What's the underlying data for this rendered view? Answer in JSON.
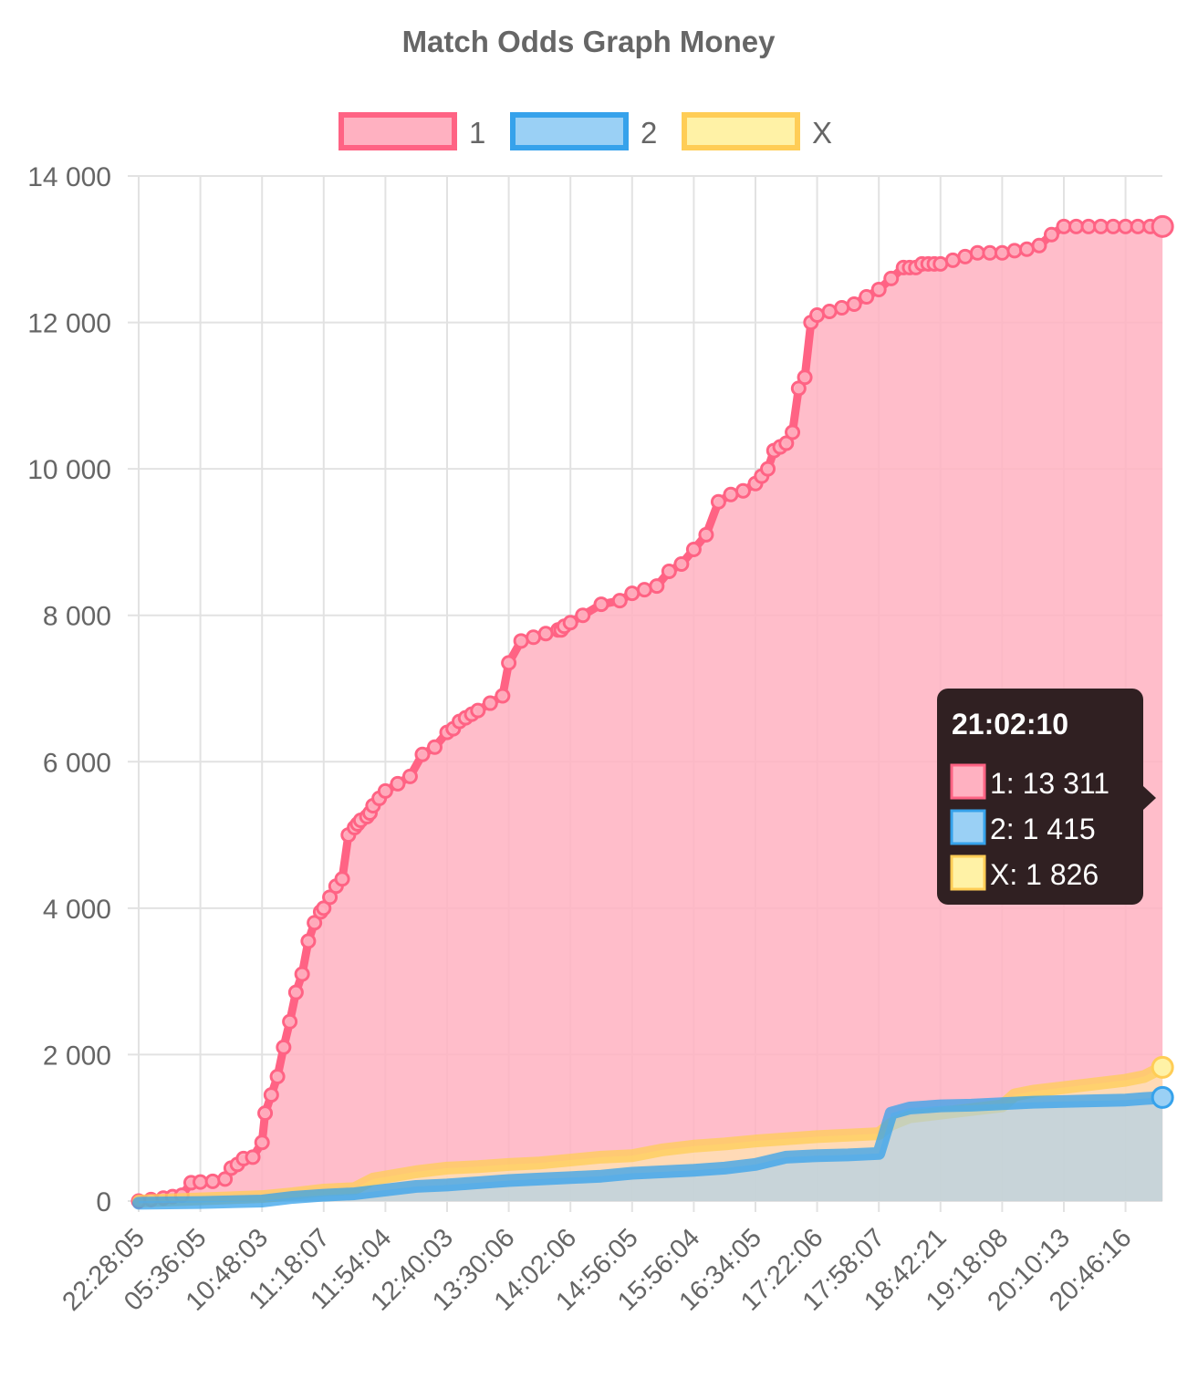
{
  "chart_data": {
    "type": "area",
    "title": "Match Odds Graph Money",
    "xlabel": "",
    "ylabel": "",
    "ylim": [
      0,
      14000
    ],
    "y_ticks": [
      "0",
      "2 000",
      "4 000",
      "6 000",
      "8 000",
      "10 000",
      "12 000",
      "14 000"
    ],
    "y_tick_values": [
      0,
      2000,
      4000,
      6000,
      8000,
      10000,
      12000,
      14000
    ],
    "x_tick_labels": [
      "22:28:05",
      "05:36:05",
      "10:48:03",
      "11:18:07",
      "11:54:04",
      "12:40:03",
      "13:30:06",
      "14:02:06",
      "14:56:05",
      "15:56:04",
      "16:34:05",
      "17:22:06",
      "17:58:07",
      "18:42:21",
      "19:18:08",
      "20:10:13",
      "20:46:16"
    ],
    "x_index_range": [
      0,
      16.6
    ],
    "grid": true,
    "legend_position": "top",
    "series": [
      {
        "name": "1",
        "color": "#ff6384",
        "fill": "#ffb1c1",
        "x": [
          0,
          0.2,
          0.4,
          0.55,
          0.7,
          0.85,
          1.0,
          1.2,
          1.4,
          1.5,
          1.6,
          1.7,
          1.85,
          2.0,
          2.05,
          2.15,
          2.25,
          2.35,
          2.45,
          2.55,
          2.65,
          2.75,
          2.85,
          2.95,
          3.0,
          3.1,
          3.2,
          3.3,
          3.4,
          3.5,
          3.55,
          3.6,
          3.7,
          3.75,
          3.8,
          3.9,
          4.0,
          4.2,
          4.4,
          4.6,
          4.8,
          5.0,
          5.1,
          5.2,
          5.3,
          5.4,
          5.5,
          5.7,
          5.9,
          6.0,
          6.2,
          6.4,
          6.6,
          6.8,
          6.85,
          6.9,
          7.0,
          7.2,
          7.5,
          7.8,
          8.0,
          8.2,
          8.4,
          8.6,
          8.8,
          9.0,
          9.2,
          9.4,
          9.6,
          9.8,
          10.0,
          10.1,
          10.2,
          10.3,
          10.4,
          10.5,
          10.6,
          10.7,
          10.8,
          10.9,
          11.0,
          11.2,
          11.4,
          11.6,
          11.8,
          12.0,
          12.2,
          12.4,
          12.5,
          12.6,
          12.7,
          12.8,
          12.9,
          13.0,
          13.2,
          13.4,
          13.6,
          13.8,
          14.0,
          14.2,
          14.4,
          14.6,
          14.8,
          15.0,
          15.2,
          15.4,
          15.6,
          15.8,
          16.0,
          16.2,
          16.4,
          16.6
        ],
        "values": [
          0,
          20,
          40,
          60,
          80,
          250,
          260,
          270,
          300,
          450,
          500,
          580,
          600,
          800,
          1200,
          1450,
          1700,
          2100,
          2450,
          2850,
          3100,
          3550,
          3800,
          3950,
          4000,
          4150,
          4300,
          4400,
          5000,
          5100,
          5150,
          5200,
          5250,
          5300,
          5400,
          5500,
          5600,
          5700,
          5800,
          6100,
          6200,
          6400,
          6450,
          6550,
          6600,
          6650,
          6700,
          6800,
          6900,
          7350,
          7650,
          7700,
          7750,
          7800,
          7800,
          7850,
          7900,
          8000,
          8150,
          8200,
          8300,
          8350,
          8400,
          8600,
          8700,
          8900,
          9100,
          9550,
          9650,
          9700,
          9800,
          9900,
          10000,
          10250,
          10300,
          10350,
          10500,
          11100,
          11250,
          12000,
          12100,
          12150,
          12200,
          12250,
          12350,
          12450,
          12600,
          12750,
          12750,
          12750,
          12800,
          12800,
          12800,
          12800,
          12850,
          12900,
          12950,
          12950,
          12950,
          12980,
          13000,
          13050,
          13200,
          13311,
          13311,
          13311,
          13311,
          13311,
          13311,
          13311,
          13311,
          13311
        ]
      },
      {
        "name": "2",
        "color": "#36a2eb",
        "fill": "#9ad0f5",
        "x": [
          0,
          1,
          2,
          2.5,
          3,
          3.5,
          4,
          4.5,
          5,
          5.5,
          6,
          6.5,
          7,
          7.5,
          8,
          8.5,
          9,
          9.5,
          10,
          10.5,
          11,
          11.5,
          12,
          12.2,
          12.5,
          13,
          13.5,
          14,
          14.5,
          15,
          15.5,
          16,
          16.3,
          16.6
        ],
        "values": [
          -30,
          -20,
          0,
          50,
          80,
          100,
          150,
          200,
          220,
          250,
          280,
          300,
          320,
          340,
          380,
          400,
          420,
          450,
          500,
          600,
          620,
          630,
          650,
          1200,
          1270,
          1300,
          1310,
          1330,
          1350,
          1360,
          1370,
          1380,
          1400,
          1415
        ]
      },
      {
        "name": "X",
        "color": "#ffcd56",
        "fill": "#fff2a6",
        "x": [
          0,
          1,
          2,
          2.5,
          3,
          3.5,
          3.8,
          4.5,
          5,
          5.5,
          6,
          6.5,
          7,
          7.5,
          8,
          8.5,
          9,
          9.5,
          10,
          10.5,
          11,
          11.5,
          12,
          12.2,
          12.5,
          13,
          13.5,
          14,
          14.2,
          14.5,
          15,
          15.5,
          16,
          16.3,
          16.6
        ],
        "values": [
          0,
          30,
          60,
          100,
          150,
          170,
          300,
          400,
          450,
          470,
          500,
          520,
          560,
          600,
          620,
          700,
          750,
          780,
          820,
          850,
          880,
          900,
          920,
          1050,
          1150,
          1200,
          1250,
          1300,
          1450,
          1500,
          1550,
          1600,
          1650,
          1700,
          1826
        ]
      }
    ],
    "tooltip": {
      "title": "21:02:10",
      "items": [
        {
          "text": "1: 13 311",
          "fill": "#ffb1c1",
          "border": "#ff6384"
        },
        {
          "text": "2: 1 415",
          "fill": "#9ad0f5",
          "border": "#36a2eb"
        },
        {
          "text": "X: 1 826",
          "fill": "#fff2a6",
          "border": "#ffcd56"
        }
      ]
    }
  }
}
